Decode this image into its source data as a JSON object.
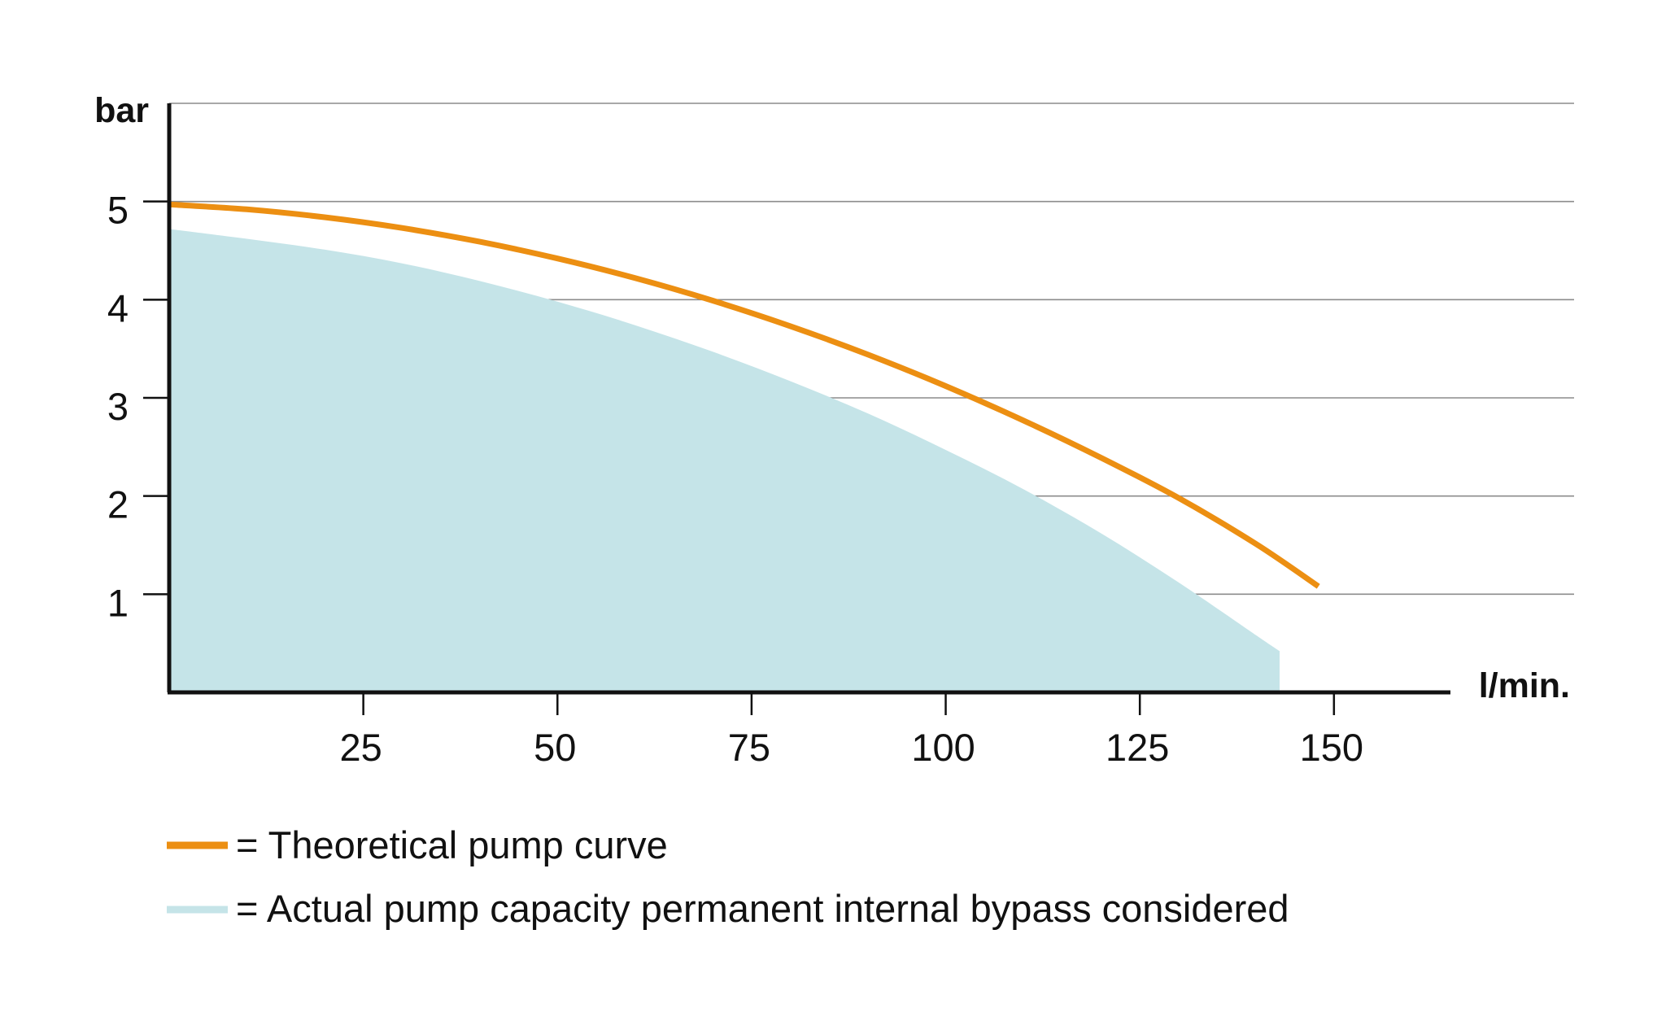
{
  "chart_data": {
    "type": "area",
    "xlabel": "l/min.",
    "ylabel": "bar",
    "xlim": [
      0,
      165
    ],
    "ylim": [
      0,
      6
    ],
    "x_ticks": [
      25,
      50,
      75,
      100,
      125,
      150
    ],
    "y_ticks": [
      1,
      2,
      3,
      4,
      5
    ],
    "grid": true,
    "legend_placement": "bottom-left",
    "series": [
      {
        "name": "= Theoretical pump curve",
        "kind": "line",
        "color": "#ec8f12",
        "x": [
          0,
          10,
          20,
          30,
          40,
          50,
          60,
          70,
          80,
          90,
          100,
          110,
          120,
          130,
          140,
          148
        ],
        "y": [
          4.97,
          4.92,
          4.84,
          4.73,
          4.59,
          4.42,
          4.22,
          3.99,
          3.73,
          3.44,
          3.12,
          2.77,
          2.39,
          1.98,
          1.51,
          1.08
        ]
      },
      {
        "name": "= Actual pump capacity permanent internal bypass considered",
        "kind": "area",
        "color": "#c5e4e8",
        "x": [
          0,
          10,
          20,
          30,
          40,
          50,
          60,
          70,
          80,
          90,
          100,
          110,
          120,
          130,
          140,
          143
        ],
        "y": [
          4.72,
          4.62,
          4.51,
          4.37,
          4.19,
          3.98,
          3.74,
          3.47,
          3.17,
          2.84,
          2.47,
          2.07,
          1.62,
          1.12,
          0.58,
          0.42
        ]
      }
    ]
  }
}
